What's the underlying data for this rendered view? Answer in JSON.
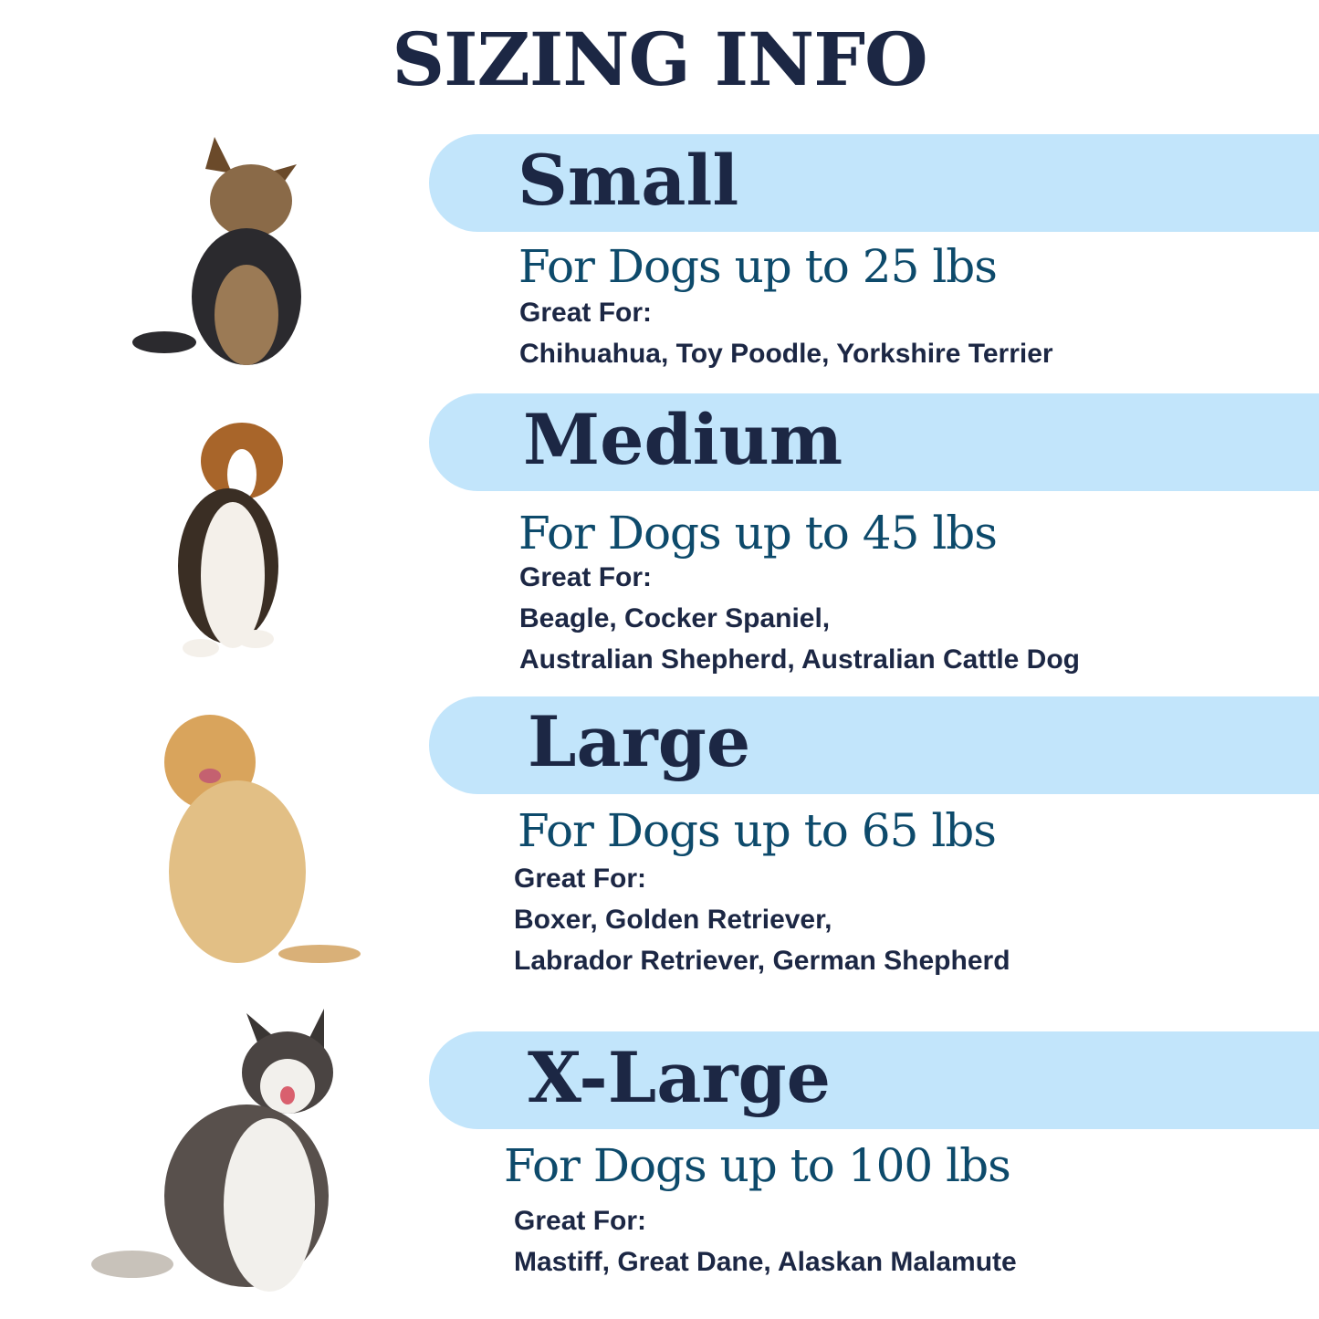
{
  "title": "SIZING INFO",
  "colors": {
    "banner": "#c2e5fb",
    "heading": "#1c2744",
    "subheading": "#0d4a6b"
  },
  "sizes": [
    {
      "name": "Small",
      "weight": "For Dogs up to 25 lbs",
      "great_for": "Great For:",
      "breeds": [
        "Chihuahua, Toy Poodle, Yorkshire Terrier"
      ],
      "image": "yorkshire-terrier-photo"
    },
    {
      "name": "Medium",
      "weight": "For Dogs up to 45 lbs",
      "great_for": "Great For:",
      "breeds": [
        "Beagle, Cocker Spaniel,",
        "Australian Shepherd, Australian Cattle Dog"
      ],
      "image": "beagle-photo"
    },
    {
      "name": "Large",
      "weight": "For Dogs up to 65 lbs",
      "great_for": "Great For:",
      "breeds": [
        "Boxer, Golden Retriever,",
        "Labrador Retriever, German Shepherd"
      ],
      "image": "golden-retriever-photo"
    },
    {
      "name": "X-Large",
      "weight": "For Dogs up to 100 lbs",
      "great_for": "Great For:",
      "breeds": [
        "Mastiff, Great Dane, Alaskan Malamute"
      ],
      "image": "alaskan-malamute-photo"
    }
  ]
}
